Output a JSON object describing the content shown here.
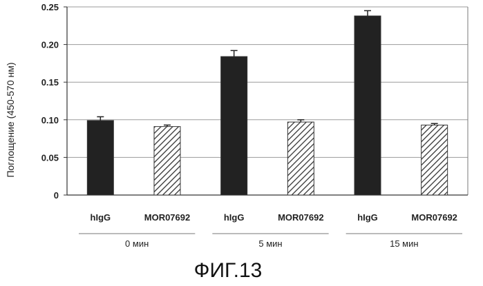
{
  "chart_data": {
    "type": "bar",
    "ylabel": "Поглощение (450-570 нм)",
    "ylim": [
      0,
      0.25
    ],
    "yticks": [
      "0",
      "0.05",
      "0.10",
      "0.15",
      "0.20",
      "0.25"
    ],
    "ytick_values": [
      0,
      0.05,
      0.1,
      0.15,
      0.2,
      0.25
    ],
    "grid": true,
    "groups": [
      {
        "label": "0 мин",
        "bars": [
          {
            "category": "hIgG",
            "value": 0.099,
            "error": 0.005,
            "style": "solid"
          },
          {
            "category": "MOR07692",
            "value": 0.091,
            "error": 0.002,
            "style": "hatched"
          }
        ]
      },
      {
        "label": "5 мин",
        "bars": [
          {
            "category": "hIgG",
            "value": 0.184,
            "error": 0.008,
            "style": "solid"
          },
          {
            "category": "MOR07692",
            "value": 0.097,
            "error": 0.003,
            "style": "hatched"
          }
        ]
      },
      {
        "label": "15 мин",
        "bars": [
          {
            "category": "hIgG",
            "value": 0.238,
            "error": 0.007,
            "style": "solid"
          },
          {
            "category": "MOR07692",
            "value": 0.093,
            "error": 0.002,
            "style": "hatched"
          }
        ]
      }
    ],
    "colors": {
      "solid": "#222222",
      "hatched_fill": "#ffffff",
      "hatched_stroke": "#333333"
    }
  },
  "figure_label": "ФИГ.13"
}
